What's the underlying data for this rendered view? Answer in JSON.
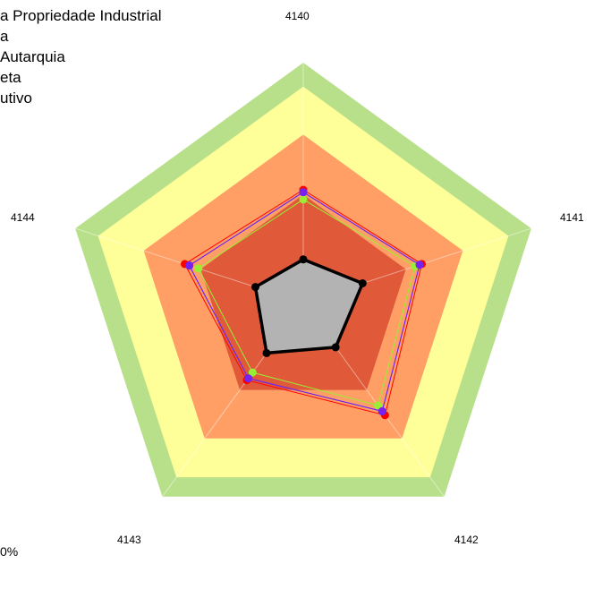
{
  "legend": {
    "items": [
      "a Propriedade Industrial",
      "a",
      "Autarquia",
      "eta",
      "utivo"
    ]
  },
  "footnote": "0%",
  "chart_data": {
    "type": "radar",
    "axes": [
      "4140",
      "4141",
      "4142",
      "4143",
      "4144"
    ],
    "rlim": [
      0,
      100
    ],
    "bands": [
      {
        "from": 90,
        "to": 100,
        "color": "#b8e08a"
      },
      {
        "from": 70,
        "to": 90,
        "color": "#ffff99"
      },
      {
        "from": 45,
        "to": 70,
        "color": "#ff9f66"
      },
      {
        "from": 25,
        "to": 45,
        "color": "#e05a3a"
      }
    ],
    "series": [
      {
        "color": "#ff0000",
        "values": [
          47,
          52,
          58,
          40,
          52
        ],
        "width": 1
      },
      {
        "color": "#3333ff",
        "values": [
          46,
          51,
          56,
          39,
          50
        ],
        "width": 1
      },
      {
        "color": "#99ee33",
        "values": [
          43,
          49,
          53,
          36,
          46
        ],
        "width": 1
      },
      {
        "color": "#7722ee",
        "values": [
          46,
          51,
          56,
          39,
          50
        ],
        "width": 1
      },
      {
        "color": "#000000",
        "values": [
          18,
          26,
          23,
          26,
          21
        ],
        "width": 3.5,
        "fill": "#b3b3b3"
      }
    ]
  }
}
